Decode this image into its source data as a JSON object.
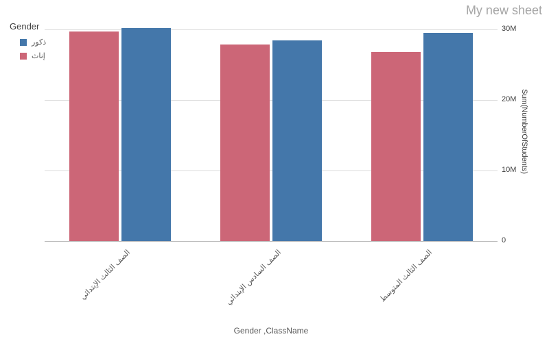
{
  "sheet": {
    "title": "My new sheet"
  },
  "chart_data": {
    "type": "bar",
    "legend_title": "Gender",
    "legend_position": "top-left",
    "categories": [
      "الصف الثالث الإبتدائي",
      "الصف السادس الإبتدائي",
      "الصف الثالث المتوسط"
    ],
    "series": [
      {
        "name": "ذكور",
        "color": "#4477aa",
        "values": [
          30.2,
          28.4,
          29.5
        ]
      },
      {
        "name": "إناث",
        "color": "#cc6677",
        "values": [
          29.7,
          27.9,
          26.8
        ]
      }
    ],
    "unit": "M",
    "xlabel": "Gender ,ClassName",
    "ylabel": "Sum(NumberOfStudents)",
    "ylim": [
      0,
      31
    ],
    "grid": true,
    "yticks": [
      {
        "label": "30M",
        "value": 30
      },
      {
        "label": "20M",
        "value": 20
      },
      {
        "label": "10M",
        "value": 10
      },
      {
        "label": "0",
        "value": 0
      }
    ]
  }
}
